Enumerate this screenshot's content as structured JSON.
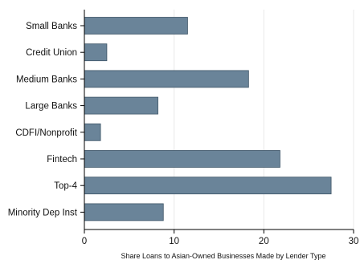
{
  "chart_data": {
    "type": "bar",
    "orientation": "horizontal",
    "categories": [
      "Small Banks",
      "Credit Union",
      "Medium Banks",
      "Large Banks",
      "CDFI/Nonprofit",
      "Fintech",
      "Top-4",
      "Minority Dep Inst"
    ],
    "values": [
      11.5,
      2.5,
      18.3,
      8.2,
      1.8,
      21.8,
      27.5,
      8.8
    ],
    "xlabel": "Share Loans to Asian-Owned Businesses Made by Lender Type",
    "ylabel": "",
    "xlim": [
      0,
      30
    ],
    "xticks": [
      0,
      10,
      20,
      30
    ],
    "bar_color": "#6a8499",
    "bar_edge_color": "#3d5466",
    "grid": true,
    "grid_color": "#e8e8e8"
  }
}
